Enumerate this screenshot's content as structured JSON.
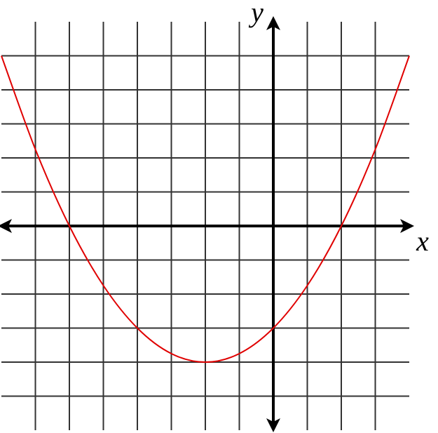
{
  "chart_data": {
    "type": "line",
    "x_label": "x",
    "y_label": "y",
    "x": [
      -8,
      -7,
      -6,
      -5,
      -4,
      -3,
      -2,
      -1,
      0,
      1,
      2,
      3,
      4
    ],
    "values": [
      5,
      2.25,
      0,
      -1.75,
      -3,
      -3.75,
      -4,
      -3.75,
      -3,
      -1.75,
      0,
      2.25,
      5
    ],
    "color": "#e00000",
    "xlim": [
      -8,
      4
    ],
    "ylim": [
      -6,
      6
    ],
    "xticks": [
      -7,
      -6,
      -5,
      -4,
      -3,
      -2,
      -1,
      0,
      1,
      2,
      3
    ],
    "yticks": [
      -5,
      -4,
      -3,
      -2,
      -1,
      0,
      1,
      2,
      3,
      4,
      5
    ],
    "grid": true
  }
}
